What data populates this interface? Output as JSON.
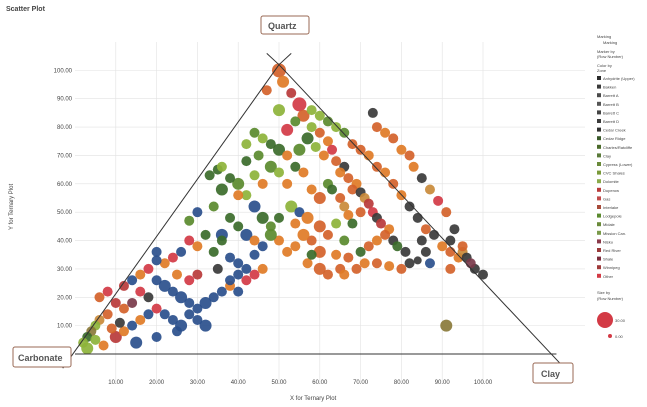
{
  "chart_data": {
    "type": "scatter",
    "title": "Scatter Plot",
    "xlabel": "X for Ternary Plot",
    "ylabel": "Y for Ternary Plot",
    "xlim": [
      0,
      125
    ],
    "ylim": [
      0,
      110
    ],
    "x_ticks": [
      "10.00",
      "20.00",
      "30.00",
      "40.00",
      "50.00",
      "60.00",
      "70.00",
      "80.00",
      "90.00",
      "100.00"
    ],
    "y_ticks": [
      "10.00",
      "20.00",
      "30.00",
      "40.00",
      "50.00",
      "60.00",
      "70.00",
      "80.00",
      "90.00",
      "100.00"
    ],
    "corner_labels": {
      "top": "Quartz",
      "left": "Carbonate",
      "right": "Clay"
    },
    "colors": [
      "#d4622a",
      "#e07b26",
      "#2a4f8c",
      "#1f4a8a",
      "#3b6b2a",
      "#5a8a2e",
      "#8db33a",
      "#b83a3a",
      "#d33a45",
      "#8a7a3a",
      "#3a3a3a",
      "#c98a3a",
      "#7a3a4a"
    ],
    "points": [
      [
        50,
        100,
        0,
        7
      ],
      [
        51,
        96,
        1,
        6
      ],
      [
        47,
        93,
        0,
        5
      ],
      [
        53,
        92,
        7,
        5
      ],
      [
        55,
        88,
        8,
        7
      ],
      [
        50,
        86,
        6,
        6
      ],
      [
        56,
        84,
        0,
        6
      ],
      [
        54,
        82,
        5,
        5
      ],
      [
        58,
        80,
        6,
        5
      ],
      [
        52,
        79,
        8,
        6
      ],
      [
        60,
        78,
        0,
        5
      ],
      [
        57,
        76,
        4,
        6
      ],
      [
        62,
        75,
        1,
        5
      ],
      [
        59,
        73,
        6,
        5
      ],
      [
        63,
        72,
        8,
        5
      ],
      [
        55,
        72,
        5,
        6
      ],
      [
        61,
        70,
        1,
        5
      ],
      [
        64,
        68,
        0,
        5
      ],
      [
        66,
        66,
        10,
        5
      ],
      [
        65,
        64,
        1,
        5
      ],
      [
        67,
        62,
        0,
        5
      ],
      [
        69,
        60,
        1,
        5
      ],
      [
        68,
        58,
        0,
        5
      ],
      [
        70,
        57,
        10,
        5
      ],
      [
        71,
        55,
        11,
        5
      ],
      [
        72,
        53,
        7,
        5
      ],
      [
        70,
        50,
        0,
        5
      ],
      [
        73,
        50,
        8,
        5
      ],
      [
        74,
        48,
        10,
        5
      ],
      [
        75,
        46,
        7,
        5
      ],
      [
        77,
        44,
        1,
        5
      ],
      [
        76,
        42,
        0,
        5
      ],
      [
        78,
        40,
        10,
        5
      ],
      [
        79,
        38,
        4,
        5
      ],
      [
        81,
        36,
        10,
        5
      ],
      [
        84,
        33,
        10,
        4
      ],
      [
        62,
        60,
        5,
        5
      ],
      [
        60,
        55,
        0,
        6
      ],
      [
        58,
        58,
        1,
        5
      ],
      [
        63,
        58,
        4,
        5
      ],
      [
        65,
        55,
        0,
        5
      ],
      [
        66,
        52,
        11,
        5
      ],
      [
        67,
        49,
        1,
        5
      ],
      [
        68,
        46,
        4,
        5
      ],
      [
        64,
        46,
        6,
        5
      ],
      [
        60,
        45,
        0,
        6
      ],
      [
        62,
        42,
        0,
        5
      ],
      [
        66,
        40,
        5,
        5
      ],
      [
        58,
        40,
        0,
        5
      ],
      [
        56,
        42,
        1,
        6
      ],
      [
        54,
        38,
        1,
        5
      ],
      [
        60,
        36,
        0,
        6
      ],
      [
        64,
        35,
        1,
        5
      ],
      [
        67,
        34,
        0,
        5
      ],
      [
        70,
        36,
        4,
        5
      ],
      [
        72,
        38,
        0,
        5
      ],
      [
        74,
        40,
        1,
        5
      ],
      [
        65,
        30,
        0,
        5
      ],
      [
        60,
        30,
        0,
        6
      ],
      [
        57,
        32,
        1,
        5
      ],
      [
        52,
        36,
        1,
        5
      ],
      [
        50,
        40,
        1,
        5
      ],
      [
        48,
        45,
        5,
        5
      ],
      [
        46,
        48,
        4,
        6
      ],
      [
        44,
        52,
        2,
        6
      ],
      [
        42,
        56,
        6,
        5
      ],
      [
        40,
        60,
        5,
        6
      ],
      [
        38,
        62,
        4,
        5
      ],
      [
        35,
        65,
        4,
        5
      ],
      [
        33,
        63,
        4,
        5
      ],
      [
        36,
        58,
        4,
        6
      ],
      [
        34,
        52,
        5,
        5
      ],
      [
        30,
        50,
        2,
        5
      ],
      [
        28,
        47,
        5,
        5
      ],
      [
        38,
        48,
        4,
        5
      ],
      [
        40,
        45,
        4,
        5
      ],
      [
        42,
        42,
        2,
        6
      ],
      [
        44,
        40,
        1,
        5
      ],
      [
        36,
        42,
        2,
        6
      ],
      [
        32,
        42,
        4,
        5
      ],
      [
        30,
        38,
        1,
        5
      ],
      [
        28,
        40,
        8,
        5
      ],
      [
        26,
        36,
        2,
        5
      ],
      [
        24,
        34,
        8,
        5
      ],
      [
        22,
        32,
        1,
        5
      ],
      [
        20,
        33,
        2,
        5
      ],
      [
        18,
        30,
        8,
        5
      ],
      [
        16,
        28,
        1,
        5
      ],
      [
        14,
        26,
        2,
        5
      ],
      [
        12,
        24,
        7,
        5
      ],
      [
        20,
        26,
        2,
        5
      ],
      [
        22,
        24,
        2,
        6
      ],
      [
        24,
        22,
        2,
        5
      ],
      [
        26,
        20,
        2,
        6
      ],
      [
        28,
        18,
        2,
        5
      ],
      [
        30,
        16,
        2,
        5
      ],
      [
        32,
        18,
        2,
        6
      ],
      [
        34,
        20,
        2,
        5
      ],
      [
        36,
        22,
        2,
        5
      ],
      [
        38,
        24,
        1,
        5
      ],
      [
        40,
        22,
        2,
        5
      ],
      [
        42,
        26,
        8,
        5
      ],
      [
        44,
        28,
        8,
        5
      ],
      [
        46,
        30,
        1,
        5
      ],
      [
        40,
        32,
        2,
        5
      ],
      [
        38,
        34,
        2,
        5
      ],
      [
        35,
        30,
        10,
        5
      ],
      [
        30,
        28,
        7,
        5
      ],
      [
        28,
        26,
        8,
        5
      ],
      [
        25,
        28,
        1,
        5
      ],
      [
        18,
        20,
        10,
        5
      ],
      [
        16,
        22,
        8,
        5
      ],
      [
        14,
        18,
        12,
        5
      ],
      [
        12,
        16,
        0,
        5
      ],
      [
        10,
        18,
        7,
        5
      ],
      [
        8,
        14,
        0,
        5
      ],
      [
        6,
        12,
        11,
        5
      ],
      [
        5,
        10,
        6,
        5
      ],
      [
        4,
        8,
        9,
        5
      ],
      [
        3,
        6,
        4,
        5
      ],
      [
        2,
        4,
        6,
        5
      ],
      [
        10,
        6,
        7,
        6
      ],
      [
        12,
        8,
        1,
        5
      ],
      [
        14,
        10,
        2,
        5
      ],
      [
        16,
        12,
        1,
        5
      ],
      [
        18,
        14,
        2,
        5
      ],
      [
        20,
        16,
        8,
        5
      ],
      [
        22,
        14,
        2,
        5
      ],
      [
        24,
        12,
        2,
        5
      ],
      [
        26,
        10,
        2,
        6
      ],
      [
        28,
        14,
        2,
        5
      ],
      [
        30,
        12,
        2,
        5
      ],
      [
        32,
        10,
        2,
        6
      ],
      [
        15,
        4,
        2,
        6
      ],
      [
        20,
        6,
        2,
        5
      ],
      [
        25,
        8,
        2,
        5
      ],
      [
        8,
        22,
        8,
        5
      ],
      [
        6,
        20,
        0,
        5
      ],
      [
        9,
        9,
        0,
        5
      ],
      [
        11,
        11,
        10,
        5
      ],
      [
        5,
        5,
        6,
        5
      ],
      [
        7,
        3,
        1,
        5
      ],
      [
        3,
        2,
        6,
        6
      ],
      [
        48,
        66,
        5,
        6
      ],
      [
        45,
        70,
        5,
        5
      ],
      [
        42,
        68,
        4,
        5
      ],
      [
        50,
        64,
        6,
        5
      ],
      [
        52,
        60,
        1,
        5
      ],
      [
        46,
        60,
        1,
        5
      ],
      [
        44,
        63,
        6,
        5
      ],
      [
        40,
        56,
        1,
        5
      ],
      [
        36,
        66,
        6,
        5
      ],
      [
        42,
        74,
        6,
        5
      ],
      [
        46,
        76,
        6,
        5
      ],
      [
        48,
        74,
        4,
        5
      ],
      [
        50,
        72,
        4,
        6
      ],
      [
        44,
        78,
        5,
        5
      ],
      [
        52,
        70,
        1,
        5
      ],
      [
        54,
        66,
        4,
        5
      ],
      [
        56,
        64,
        1,
        5
      ],
      [
        53,
        52,
        6,
        6
      ],
      [
        55,
        50,
        2,
        5
      ],
      [
        57,
        48,
        1,
        6
      ],
      [
        54,
        46,
        1,
        5
      ],
      [
        50,
        48,
        4,
        5
      ],
      [
        48,
        42,
        5,
        6
      ],
      [
        46,
        38,
        2,
        5
      ],
      [
        44,
        35,
        2,
        5
      ],
      [
        42,
        30,
        2,
        5
      ],
      [
        40,
        28,
        2,
        5
      ],
      [
        38,
        26,
        2,
        5
      ],
      [
        58,
        35,
        4,
        5
      ],
      [
        62,
        28,
        0,
        5
      ],
      [
        66,
        28,
        1,
        5
      ],
      [
        69,
        30,
        0,
        5
      ],
      [
        71,
        32,
        1,
        5
      ],
      [
        74,
        32,
        0,
        5
      ],
      [
        77,
        31,
        1,
        5
      ],
      [
        80,
        30,
        0,
        5
      ],
      [
        82,
        32,
        10,
        5
      ],
      [
        68,
        74,
        0,
        5
      ],
      [
        70,
        72,
        0,
        5
      ],
      [
        72,
        70,
        1,
        5
      ],
      [
        74,
        66,
        0,
        5
      ],
      [
        76,
        64,
        1,
        5
      ],
      [
        78,
        60,
        0,
        5
      ],
      [
        80,
        56,
        1,
        5
      ],
      [
        82,
        52,
        10,
        5
      ],
      [
        84,
        48,
        10,
        5
      ],
      [
        86,
        44,
        0,
        5
      ],
      [
        88,
        42,
        10,
        5
      ],
      [
        90,
        38,
        1,
        5
      ],
      [
        92,
        36,
        0,
        5
      ],
      [
        85,
        40,
        10,
        5
      ],
      [
        86,
        36,
        10,
        5
      ],
      [
        87,
        32,
        2,
        5
      ],
      [
        92,
        30,
        0,
        5
      ],
      [
        94,
        34,
        1,
        5
      ],
      [
        95,
        36,
        11,
        5
      ],
      [
        96,
        34,
        10,
        5
      ],
      [
        98,
        30,
        10,
        5
      ],
      [
        100,
        28,
        10,
        5
      ],
      [
        97,
        32,
        12,
        5
      ],
      [
        93,
        44,
        10,
        5
      ],
      [
        91,
        50,
        0,
        5
      ],
      [
        89,
        54,
        8,
        5
      ],
      [
        87,
        58,
        11,
        5
      ],
      [
        85,
        62,
        10,
        5
      ],
      [
        83,
        66,
        1,
        5
      ],
      [
        82,
        70,
        0,
        5
      ],
      [
        80,
        72,
        1,
        5
      ],
      [
        78,
        76,
        0,
        5
      ],
      [
        76,
        78,
        1,
        5
      ],
      [
        74,
        80,
        0,
        5
      ],
      [
        73,
        85,
        10,
        5
      ],
      [
        66,
        78,
        5,
        5
      ],
      [
        64,
        80,
        6,
        5
      ],
      [
        62,
        82,
        5,
        5
      ],
      [
        60,
        84,
        6,
        5
      ],
      [
        58,
        86,
        6,
        5
      ],
      [
        91,
        10,
        9,
        6
      ],
      [
        92,
        40,
        10,
        5
      ],
      [
        95,
        38,
        0,
        5
      ],
      [
        20,
        36,
        2,
        5
      ],
      [
        36,
        40,
        4,
        5
      ],
      [
        34,
        36,
        4,
        5
      ]
    ]
  },
  "legend": {
    "title1": "Marking",
    "item1": "Marking",
    "title2": "Marker by",
    "item2": "(Row Number)",
    "title3": "Color by",
    "item3": "Zone",
    "zones": [
      "Anhydrite (Upper)",
      "Bakken",
      "Barrett A",
      "Barrett B",
      "Barrett C",
      "Barrett D",
      "Cedar Creek",
      "Cedar Ridge",
      "Charles/Ratcliffe",
      "Clay",
      "Cypress (Lower)",
      "CVC Shales",
      "Dolomite",
      "Duperow",
      "Gas",
      "Interlake",
      "Lodgepole",
      "Midale",
      "Mission Can.",
      "Nisku",
      "Red River",
      "Shale",
      "Winnipeg",
      "Other"
    ],
    "size_title": "Size by",
    "size_item": "(Row Number)",
    "size_max": "30.00",
    "size_min": "0.00"
  }
}
